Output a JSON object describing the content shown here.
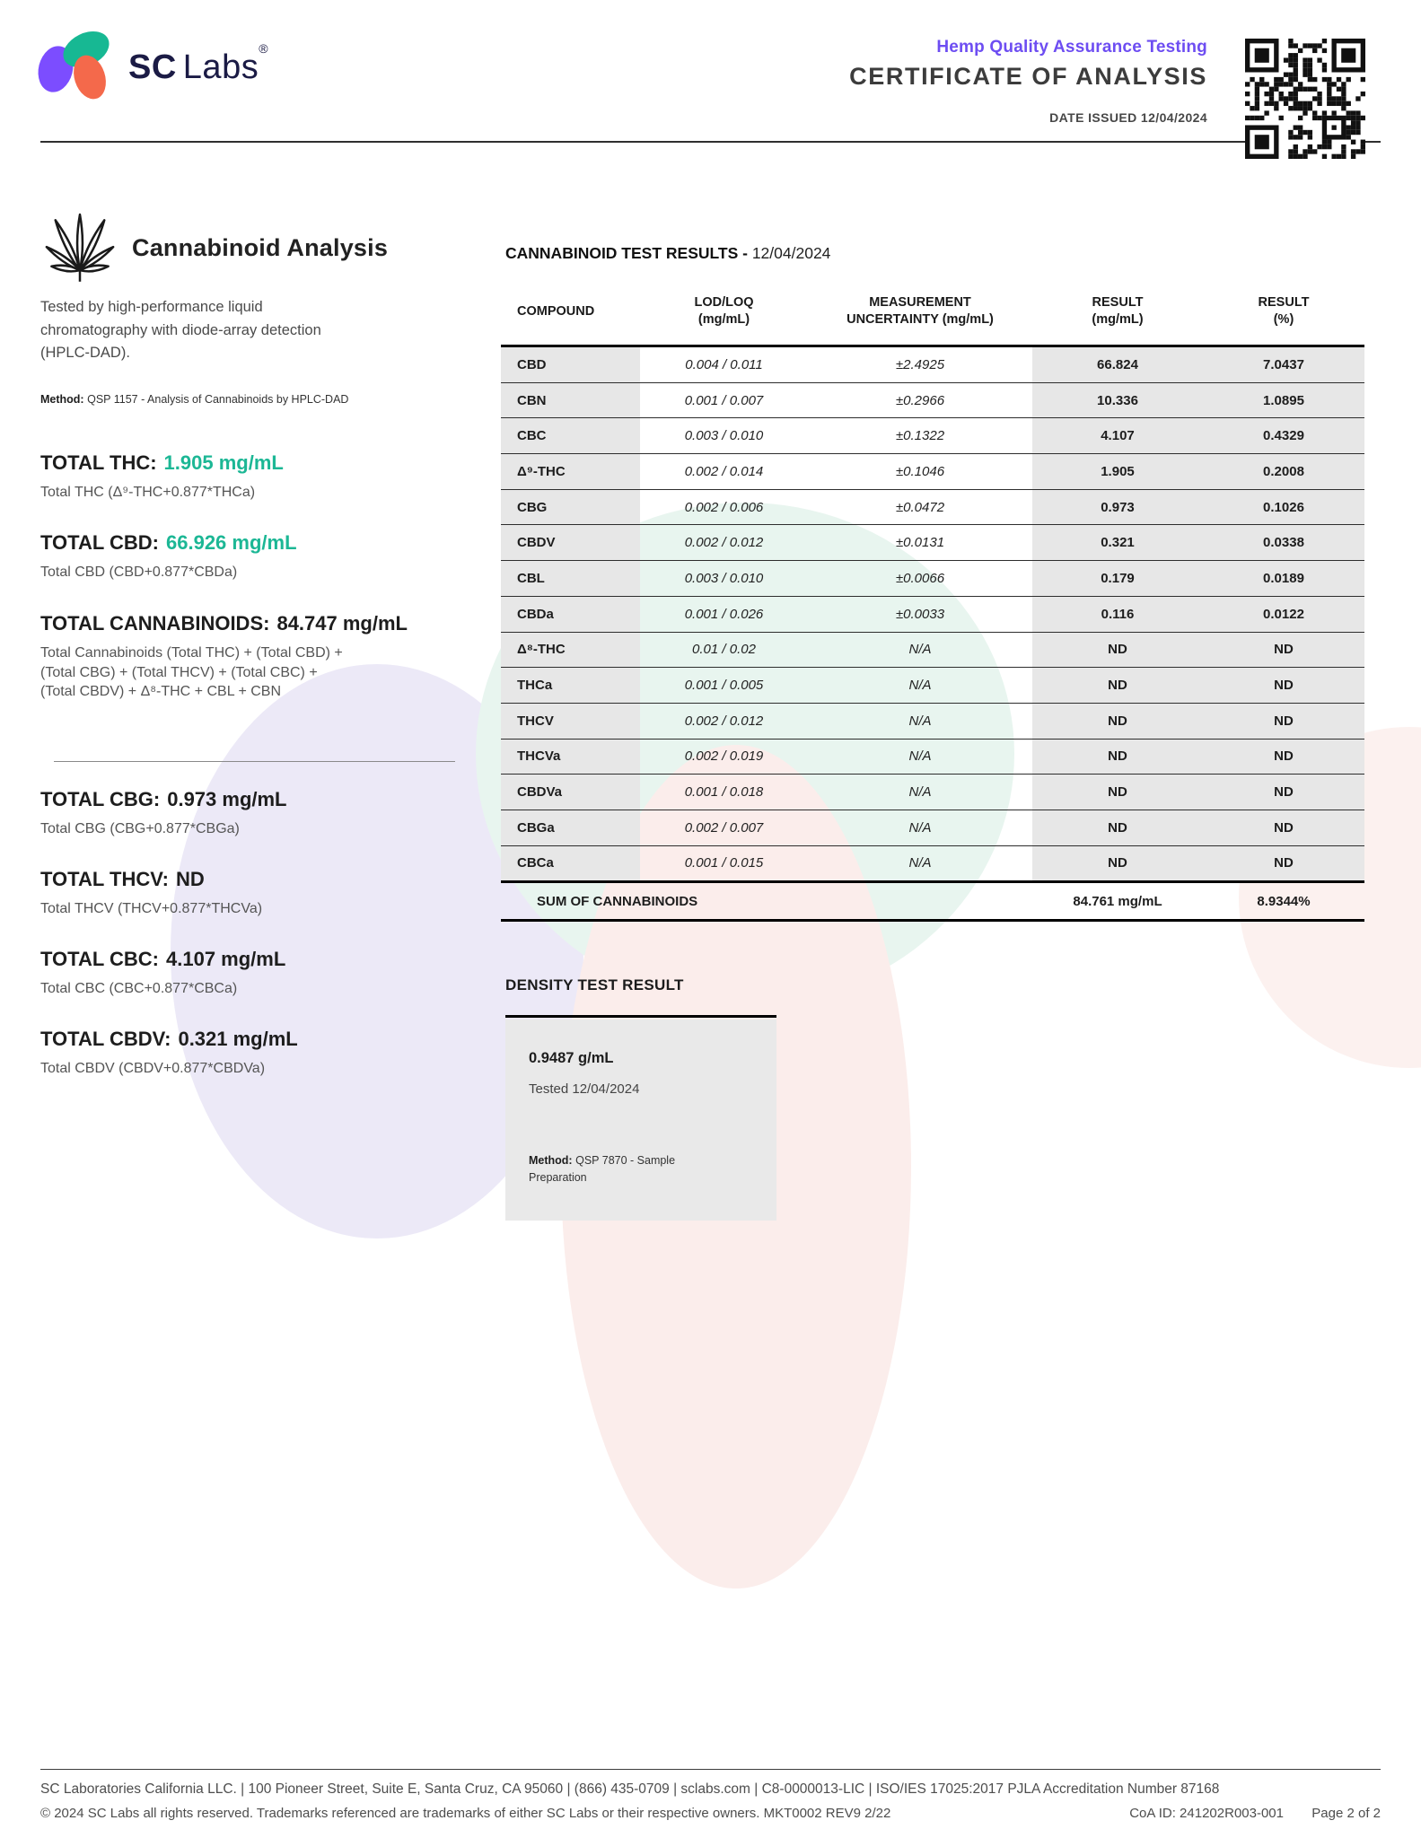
{
  "colors": {
    "accent_teal": "#1CB795",
    "accent_purple": "#6D4DF2",
    "logo_green": "#17B893",
    "logo_purple": "#7C4DFF",
    "logo_orange": "#F4694B",
    "logo_navy": "#1B1B45",
    "table_gray": "#E7E7E7",
    "density_gray": "#E9E9E9",
    "blob_lavender": "#ECE9F7",
    "blob_mint": "#E8F5EF",
    "blob_pink": "#FBEDEB"
  },
  "header": {
    "logo_sc": "SC",
    "logo_labs": "Labs",
    "logo_reg": "®",
    "program": "Hemp Quality Assurance Testing",
    "title": "CERTIFICATE OF ANALYSIS",
    "date_issued": "DATE ISSUED 12/04/2024"
  },
  "analysis": {
    "title": "Cannabinoid Analysis",
    "description": "Tested by high-performance liquid chromatography with diode-array detection (HPLC-DAD).",
    "method_label": "Method:",
    "method": "QSP 1157 - Analysis of Cannabinoids by HPLC-DAD",
    "totals": [
      {
        "label": "TOTAL THC:",
        "value": "1.905 mg/mL",
        "formula": "Total THC (Δ⁹-THC+0.877*THCa)"
      },
      {
        "label": "TOTAL CBD:",
        "value": "66.926 mg/mL",
        "formula": "Total CBD (CBD+0.877*CBDa)"
      },
      {
        "label": "TOTAL CANNABINOIDS:",
        "value": "84.747 mg/mL",
        "formula": "Total Cannabinoids (Total THC) + (Total CBD) + (Total CBG) + (Total THCV) + (Total CBC) + (Total CBDV) + Δ⁸-THC + CBL + CBN"
      },
      {
        "label": "TOTAL CBG:",
        "value": "0.973 mg/mL",
        "formula": "Total CBG (CBG+0.877*CBGa)"
      },
      {
        "label": "TOTAL THCV:",
        "value": "ND",
        "formula": "Total THCV (THCV+0.877*THCVa)"
      },
      {
        "label": "TOTAL CBC:",
        "value": "4.107 mg/mL",
        "formula": "Total CBC (CBC+0.877*CBCa)"
      },
      {
        "label": "TOTAL CBDV:",
        "value": "0.321 mg/mL",
        "formula": "Total CBDV (CBDV+0.877*CBDVa)"
      }
    ]
  },
  "results": {
    "title": "CANNABINOID TEST RESULTS -",
    "date": "12/04/2024",
    "columns": [
      {
        "l1": "COMPOUND",
        "l2": ""
      },
      {
        "l1": "LOD/LOQ",
        "l2": "(mg/mL)"
      },
      {
        "l1": "MEASUREMENT",
        "l2": "UNCERTAINTY (mg/mL)"
      },
      {
        "l1": "RESULT",
        "l2": "(mg/mL)"
      },
      {
        "l1": "RESULT",
        "l2": "(%)"
      }
    ],
    "rows": [
      {
        "compound": "CBD",
        "lod_loq": "0.004 / 0.011",
        "uncertainty": "±2.4925",
        "result_mg": "66.824",
        "result_pct": "7.0437"
      },
      {
        "compound": "CBN",
        "lod_loq": "0.001 / 0.007",
        "uncertainty": "±0.2966",
        "result_mg": "10.336",
        "result_pct": "1.0895"
      },
      {
        "compound": "CBC",
        "lod_loq": "0.003 / 0.010",
        "uncertainty": "±0.1322",
        "result_mg": "4.107",
        "result_pct": "0.4329"
      },
      {
        "compound": "Δ⁹-THC",
        "lod_loq": "0.002 / 0.014",
        "uncertainty": "±0.1046",
        "result_mg": "1.905",
        "result_pct": "0.2008"
      },
      {
        "compound": "CBG",
        "lod_loq": "0.002 / 0.006",
        "uncertainty": "±0.0472",
        "result_mg": "0.973",
        "result_pct": "0.1026"
      },
      {
        "compound": "CBDV",
        "lod_loq": "0.002 / 0.012",
        "uncertainty": "±0.0131",
        "result_mg": "0.321",
        "result_pct": "0.0338"
      },
      {
        "compound": "CBL",
        "lod_loq": "0.003 / 0.010",
        "uncertainty": "±0.0066",
        "result_mg": "0.179",
        "result_pct": "0.0189"
      },
      {
        "compound": "CBDa",
        "lod_loq": "0.001 / 0.026",
        "uncertainty": "±0.0033",
        "result_mg": "0.116",
        "result_pct": "0.0122"
      },
      {
        "compound": "Δ⁸-THC",
        "lod_loq": "0.01 / 0.02",
        "uncertainty": "N/A",
        "result_mg": "ND",
        "result_pct": "ND"
      },
      {
        "compound": "THCa",
        "lod_loq": "0.001 / 0.005",
        "uncertainty": "N/A",
        "result_mg": "ND",
        "result_pct": "ND"
      },
      {
        "compound": "THCV",
        "lod_loq": "0.002 / 0.012",
        "uncertainty": "N/A",
        "result_mg": "ND",
        "result_pct": "ND"
      },
      {
        "compound": "THCVa",
        "lod_loq": "0.002 / 0.019",
        "uncertainty": "N/A",
        "result_mg": "ND",
        "result_pct": "ND"
      },
      {
        "compound": "CBDVa",
        "lod_loq": "0.001 / 0.018",
        "uncertainty": "N/A",
        "result_mg": "ND",
        "result_pct": "ND"
      },
      {
        "compound": "CBGa",
        "lod_loq": "0.002 / 0.007",
        "uncertainty": "N/A",
        "result_mg": "ND",
        "result_pct": "ND"
      },
      {
        "compound": "CBCa",
        "lod_loq": "0.001 / 0.015",
        "uncertainty": "N/A",
        "result_mg": "ND",
        "result_pct": "ND"
      }
    ],
    "sum": {
      "label": "SUM OF CANNABINOIDS",
      "result_mg": "84.761 mg/mL",
      "result_pct": "8.9344%"
    }
  },
  "density": {
    "title": "DENSITY TEST RESULT",
    "value": "0.9487 g/mL",
    "tested": "Tested 12/04/2024",
    "method_label": "Method:",
    "method": "QSP 7870 - Sample Preparation"
  },
  "footer": {
    "line1": "SC Laboratories California LLC. | 100 Pioneer Street, Suite E, Santa Cruz, CA 95060 | (866) 435-0709 | sclabs.com | C8-0000013-LIC | ISO/IES 17025:2017 PJLA Accreditation Number 87168",
    "line2": "© 2024 SC Labs all rights reserved. Trademarks referenced are trademarks of either SC Labs or their respective owners. MKT0002 REV9 2/22",
    "coa_id": "CoA ID: 241202R003-001",
    "page": "Page 2 of 2"
  }
}
